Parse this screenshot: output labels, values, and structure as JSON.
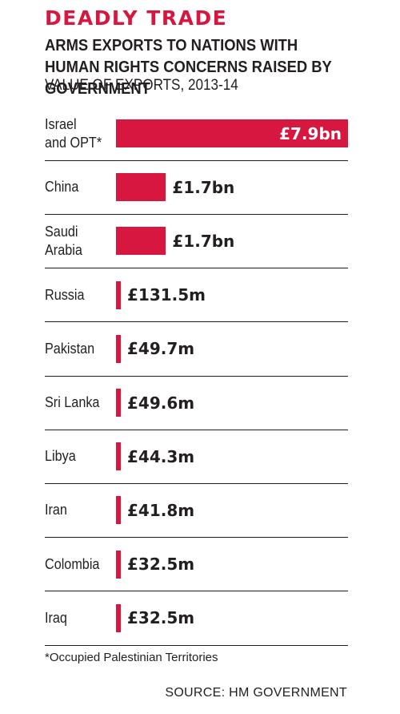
{
  "header": {
    "kicker": "DEADLY TRADE",
    "title": "ARMS EXPORTS TO NATIONS WITH HUMAN RIGHTS CONCERNS RAISED BY GOVERNMENT",
    "subtitle": "VALUE OF EXPORTS, 2013-14"
  },
  "chart_data": {
    "type": "bar",
    "orientation": "horizontal",
    "title": "ARMS EXPORTS TO NATIONS WITH HUMAN RIGHTS CONCERNS RAISED BY GOVERNMENT",
    "subtitle": "VALUE OF EXPORTS, 2013-14",
    "unit": "£m",
    "categories": [
      "Israel and OPT*",
      "China",
      "Saudi Arabia",
      "Russia",
      "Pakistan",
      "Sri Lanka",
      "Libya",
      "Iran",
      "Colombia",
      "Iraq"
    ],
    "category_lines": [
      [
        "Israel",
        "and OPT*"
      ],
      [
        "China"
      ],
      [
        "Saudi",
        "Arabia"
      ],
      [
        "Russia"
      ],
      [
        "Pakistan"
      ],
      [
        "Sri Lanka"
      ],
      [
        "Libya"
      ],
      [
        "Iran"
      ],
      [
        "Colombia"
      ],
      [
        "Iraq"
      ]
    ],
    "values": [
      7900,
      1700,
      1700,
      131.5,
      49.7,
      49.6,
      44.3,
      41.8,
      32.5,
      32.5
    ],
    "value_labels": [
      "£7.9bn",
      "£1.7bn",
      "£1.7bn",
      "£131.5m",
      "£49.7m",
      "£49.6m",
      "£44.3m",
      "£41.8m",
      "£32.5m",
      "£32.5m"
    ],
    "xlim": [
      0,
      7900
    ],
    "grid": false,
    "legend": "none",
    "bar_color": "#d7173f"
  },
  "footnote": "*Occupied Palestinian Territories",
  "source": "SOURCE: HM GOVERNMENT",
  "colors": {
    "accent": "#d7173f",
    "text": "#231f20",
    "background": "#ffffff"
  }
}
